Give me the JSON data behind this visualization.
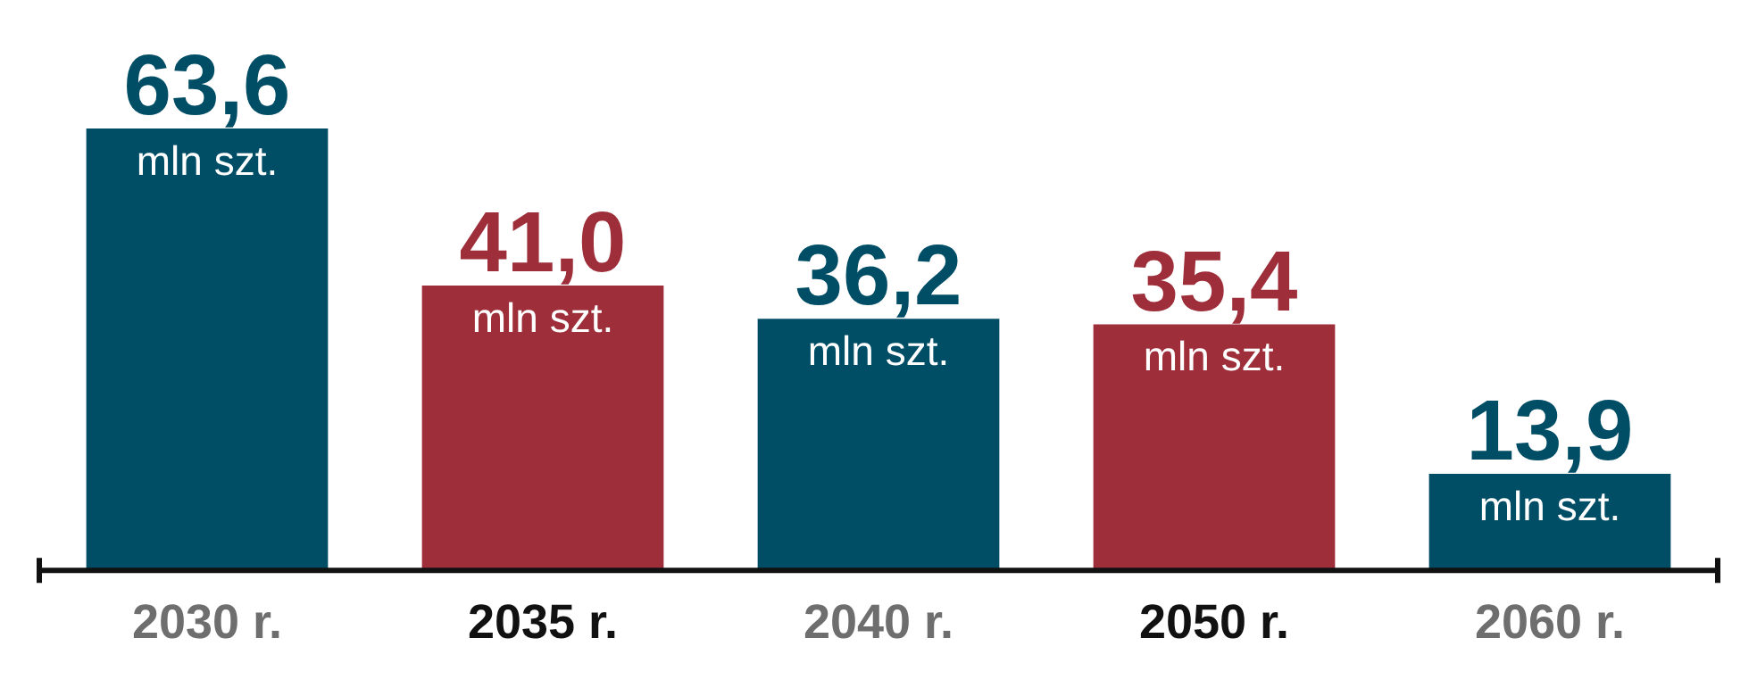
{
  "chart_data": {
    "type": "bar",
    "categories": [
      "2030 r.",
      "2035 r.",
      "2040 r.",
      "2050 r.",
      "2060 r."
    ],
    "values": [
      63.6,
      41.0,
      36.2,
      35.4,
      13.9
    ],
    "colors": [
      "#004e66",
      "#9e2f3a",
      "#004e66",
      "#9e2f3a",
      "#004e66"
    ],
    "value_labels": [
      "63,6",
      "41,0",
      "36,2",
      "35,4",
      "13,9"
    ],
    "annotations": [
      {
        "text": "mln szt.",
        "x": "2030 r.",
        "y": 63.6
      },
      {
        "text": "mln szt.",
        "x": "2035 r.",
        "y": 41.0
      },
      {
        "text": "mln szt.",
        "x": "2040 r.",
        "y": 36.2
      },
      {
        "text": "mln szt.",
        "x": "2050 r.",
        "y": 35.4
      },
      {
        "text": "mln szt.",
        "x": "2060 r.",
        "y": 13.9
      }
    ],
    "grid": false,
    "legend": false
  }
}
